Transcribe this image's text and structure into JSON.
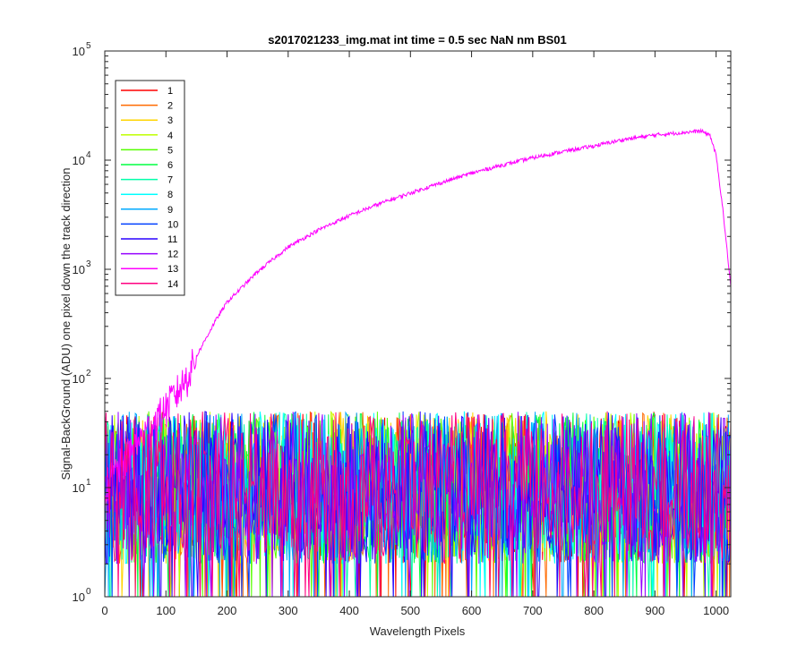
{
  "chart_data": {
    "type": "line",
    "title": "s2017021233_img.mat int time = 0.5 sec  NaN nm BS01",
    "xlabel": "Wavelength Pixels",
    "ylabel": "Signal-BackGround (ADU) one pixel down the track direction",
    "xlim": [
      0,
      1024
    ],
    "ylim": [
      1,
      100000
    ],
    "yscale": "log",
    "x_ticks": [
      0,
      100,
      200,
      300,
      400,
      500,
      600,
      700,
      800,
      900,
      1000
    ],
    "y_ticks": [
      {
        "value": 1,
        "base": "10",
        "exp": "0"
      },
      {
        "value": 10,
        "base": "10",
        "exp": "1"
      },
      {
        "value": 100,
        "base": "10",
        "exp": "2"
      },
      {
        "value": 1000,
        "base": "10",
        "exp": "3"
      },
      {
        "value": 10000,
        "base": "10",
        "exp": "4"
      },
      {
        "value": 100000,
        "base": "10",
        "exp": "5"
      }
    ],
    "grid": false,
    "legend_position": "top-left",
    "noise_series_note_range": [
      1,
      50
    ],
    "series": [
      {
        "name": "1",
        "color": "#ff0000"
      },
      {
        "name": "2",
        "color": "#ff6a00"
      },
      {
        "name": "3",
        "color": "#ffd400"
      },
      {
        "name": "4",
        "color": "#bfff00"
      },
      {
        "name": "5",
        "color": "#55ff00"
      },
      {
        "name": "6",
        "color": "#00ff40"
      },
      {
        "name": "7",
        "color": "#00ffaa"
      },
      {
        "name": "8",
        "color": "#00ffff"
      },
      {
        "name": "9",
        "color": "#00aaff"
      },
      {
        "name": "10",
        "color": "#0040ff"
      },
      {
        "name": "11",
        "color": "#2a00ff"
      },
      {
        "name": "12",
        "color": "#9500ff"
      },
      {
        "name": "13",
        "color": "#ff00ff",
        "signal_curve": {
          "x": [
            0,
            20,
            50,
            80,
            100,
            130,
            150,
            180,
            200,
            250,
            300,
            350,
            400,
            450,
            500,
            550,
            600,
            650,
            700,
            750,
            800,
            850,
            900,
            950,
            975,
            990,
            1000,
            1010,
            1024
          ],
          "y": [
            10,
            15,
            25,
            40,
            55,
            95,
            160,
            330,
            500,
            950,
            1600,
            2300,
            3100,
            4000,
            5000,
            6200,
            7600,
            9000,
            10500,
            12000,
            13500,
            15500,
            17000,
            18000,
            18500,
            17000,
            11000,
            4000,
            700
          ]
        }
      },
      {
        "name": "14",
        "color": "#ff0080"
      }
    ]
  }
}
